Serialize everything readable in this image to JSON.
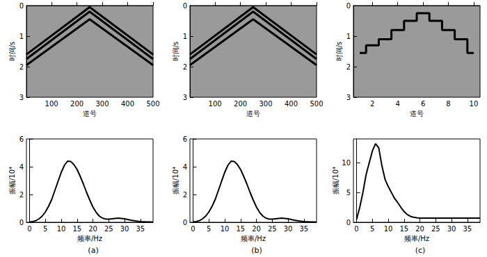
{
  "chart_data": [
    {
      "type": "line",
      "x_label": "道号",
      "y_label": "时间/s",
      "xlim": [
        1,
        500
      ],
      "xticks": [
        100,
        200,
        300,
        400,
        500
      ],
      "ylim": [
        0,
        3
      ],
      "yticks": [
        0,
        1,
        2,
        3
      ],
      "series": [
        {
          "color": "#000000",
          "x": [
            1,
            250,
            500
          ],
          "values": [
            1.6,
            0.05,
            1.6
          ]
        },
        {
          "color": "#000000",
          "x": [
            1,
            250,
            500
          ],
          "values": [
            1.75,
            0.2,
            1.75
          ]
        },
        {
          "color": "#000000",
          "x": [
            1,
            250,
            500
          ],
          "values": [
            1.95,
            0.45,
            1.95
          ]
        }
      ]
    },
    {
      "type": "line",
      "x_label": "道号",
      "y_label": "时间/s",
      "xlim": [
        1,
        500
      ],
      "xticks": [
        100,
        200,
        300,
        400,
        500
      ],
      "ylim": [
        0,
        3
      ],
      "yticks": [
        0,
        1,
        2,
        3
      ],
      "series": [
        {
          "color": "#000000",
          "x": [
            1,
            250,
            500
          ],
          "values": [
            1.6,
            0.05,
            1.6
          ]
        },
        {
          "color": "#000000",
          "x": [
            1,
            250,
            500
          ],
          "values": [
            1.75,
            0.2,
            1.75
          ]
        },
        {
          "color": "#000000",
          "x": [
            1,
            250,
            500
          ],
          "values": [
            1.95,
            0.45,
            1.95
          ]
        }
      ]
    },
    {
      "type": "line",
      "x_label": "道号",
      "y_label": "时间/s",
      "xlim": [
        0.5,
        10.5
      ],
      "xticks": [
        2,
        4,
        6,
        8,
        10
      ],
      "ylim": [
        0,
        3
      ],
      "yticks": [
        0,
        1,
        2,
        3
      ],
      "series": [
        {
          "color": "#000000",
          "line_style": "step",
          "x": [
            1,
            2,
            3,
            4,
            5,
            6,
            7,
            8,
            9,
            10
          ],
          "values": [
            1.55,
            1.3,
            1.1,
            0.8,
            0.5,
            0.25,
            0.5,
            0.8,
            1.1,
            1.55
          ]
        }
      ]
    },
    {
      "type": "line",
      "title": "(a)",
      "x_label": "频率/Hz",
      "y_label": "振幅/10⁴",
      "xlim": [
        -1,
        39
      ],
      "xticks": [
        0,
        5,
        10,
        15,
        20,
        25,
        30,
        35
      ],
      "ylim": [
        0,
        6
      ],
      "yticks": [
        0,
        2,
        4,
        6
      ],
      "series": [
        {
          "color": "#000000",
          "x": [
            0,
            1,
            2,
            3,
            4,
            5,
            6,
            7,
            8,
            9,
            10,
            11,
            12,
            13,
            14,
            15,
            16,
            17,
            18,
            19,
            20,
            21,
            22,
            23,
            24,
            25,
            26,
            27,
            28,
            29,
            30,
            31,
            32,
            33,
            34,
            35,
            36,
            37,
            38,
            39
          ],
          "values": [
            0.02,
            0.05,
            0.12,
            0.25,
            0.45,
            0.75,
            1.15,
            1.65,
            2.3,
            2.95,
            3.6,
            4.1,
            4.4,
            4.38,
            4.15,
            3.8,
            3.3,
            2.75,
            2.15,
            1.6,
            1.1,
            0.72,
            0.45,
            0.3,
            0.23,
            0.22,
            0.25,
            0.28,
            0.3,
            0.28,
            0.25,
            0.2,
            0.15,
            0.11,
            0.08,
            0.05,
            0.04,
            0.03,
            0.02,
            0.01
          ]
        }
      ]
    },
    {
      "type": "line",
      "title": "(b)",
      "x_label": "频率/Hz",
      "y_label": "振幅/10⁴",
      "xlim": [
        -1,
        39
      ],
      "xticks": [
        0,
        5,
        10,
        15,
        20,
        25,
        30,
        35
      ],
      "ylim": [
        0,
        6
      ],
      "yticks": [
        0,
        2,
        4,
        6
      ],
      "series": [
        {
          "color": "#000000",
          "x": [
            0,
            1,
            2,
            3,
            4,
            5,
            6,
            7,
            8,
            9,
            10,
            11,
            12,
            13,
            14,
            15,
            16,
            17,
            18,
            19,
            20,
            21,
            22,
            23,
            24,
            25,
            26,
            27,
            28,
            29,
            30,
            31,
            32,
            33,
            34,
            35,
            36,
            37,
            38,
            39
          ],
          "values": [
            0.02,
            0.05,
            0.12,
            0.25,
            0.45,
            0.75,
            1.15,
            1.65,
            2.3,
            2.95,
            3.6,
            4.1,
            4.4,
            4.38,
            4.15,
            3.8,
            3.3,
            2.75,
            2.15,
            1.6,
            1.1,
            0.72,
            0.45,
            0.3,
            0.23,
            0.22,
            0.25,
            0.28,
            0.3,
            0.28,
            0.25,
            0.2,
            0.15,
            0.11,
            0.08,
            0.05,
            0.04,
            0.03,
            0.02,
            0.01
          ]
        }
      ]
    },
    {
      "type": "line",
      "title": "(c)",
      "x_label": "频率/Hz",
      "y_label": "振幅/10⁴",
      "xlim": [
        -1,
        39
      ],
      "xticks": [
        0,
        5,
        10,
        15,
        20,
        25,
        30,
        35
      ],
      "ylim": [
        0,
        14
      ],
      "yticks": [
        0,
        5,
        10
      ],
      "series": [
        {
          "color": "#000000",
          "x": [
            0,
            1,
            2,
            3,
            4,
            5,
            6,
            7,
            8,
            9,
            10,
            11,
            12,
            13,
            14,
            15,
            16,
            17,
            18,
            19,
            20,
            21,
            22,
            23,
            24,
            25,
            26,
            27,
            28,
            29,
            30,
            31,
            32,
            33,
            34,
            35,
            36,
            37,
            38,
            39
          ],
          "values": [
            0.5,
            2.5,
            5,
            8,
            10,
            12,
            13.2,
            12.5,
            9.5,
            7.2,
            6,
            5,
            4,
            3.3,
            2.5,
            1.8,
            1.3,
            1,
            0.85,
            0.75,
            0.7,
            0.7,
            0.7,
            0.7,
            0.7,
            0.7,
            0.7,
            0.7,
            0.7,
            0.7,
            0.7,
            0.7,
            0.7,
            0.7,
            0.7,
            0.7,
            0.7,
            0.7,
            0.7,
            0.7
          ]
        }
      ]
    }
  ]
}
